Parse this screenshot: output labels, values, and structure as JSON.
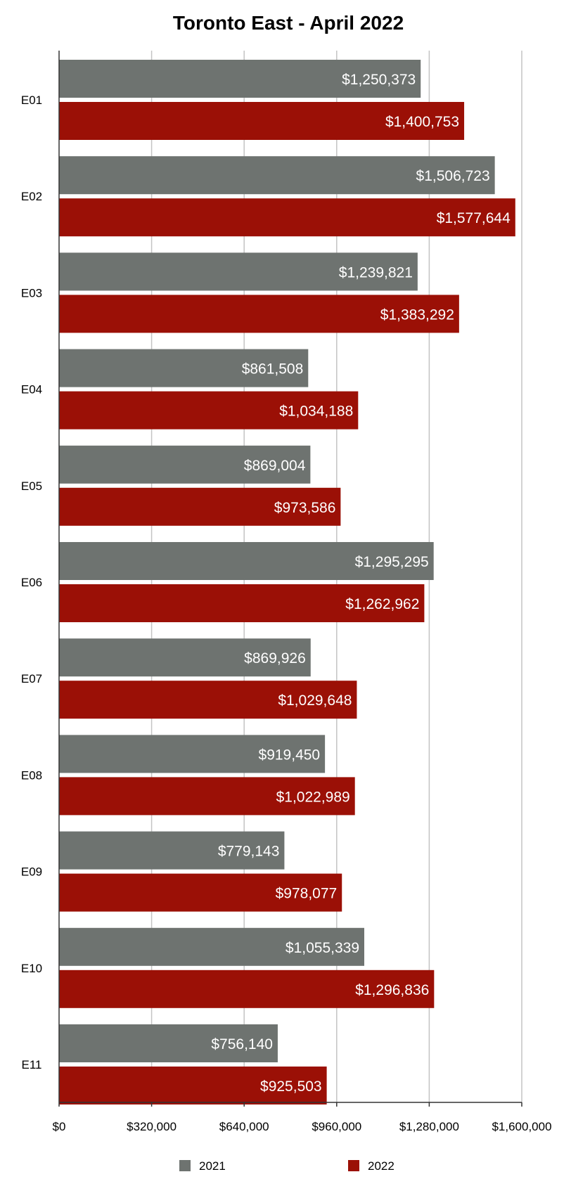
{
  "chart_data": {
    "type": "bar",
    "orientation": "horizontal",
    "title": "Toronto East - April 2022",
    "xlabel": "",
    "ylabel": "",
    "categories": [
      "E01",
      "E02",
      "E03",
      "E04",
      "E05",
      "E06",
      "E07",
      "E08",
      "E09",
      "E10",
      "E11"
    ],
    "series": [
      {
        "name": "2021",
        "color": "#6e7370",
        "values": [
          1250373,
          1506723,
          1239821,
          861508,
          869004,
          1295295,
          869926,
          919450,
          779143,
          1055339,
          756140
        ],
        "labels": [
          "$1,250,373",
          "$1,506,723",
          "$1,239,821",
          "$861,508",
          "$869,004",
          "$1,295,295",
          "$869,926",
          "$919,450",
          "$779,143",
          "$1,055,339",
          "$756,140"
        ]
      },
      {
        "name": "2022",
        "color": "#9b1006",
        "values": [
          1400753,
          1577644,
          1383292,
          1034188,
          973586,
          1262962,
          1029648,
          1022989,
          978077,
          1296836,
          925503
        ],
        "labels": [
          "$1,400,753",
          "$1,577,644",
          "$1,383,292",
          "$1,034,188",
          "$973,586",
          "$1,262,962",
          "$1,029,648",
          "$1,022,989",
          "$978,077",
          "$1,296,836",
          "$925,503"
        ]
      }
    ],
    "xlim": [
      0,
      1600000
    ],
    "xticks": [
      0,
      320000,
      640000,
      960000,
      1280000,
      1600000
    ],
    "xtick_labels": [
      "$0",
      "$320,000",
      "$640,000",
      "$960,000",
      "$1,280,000",
      "$1,600,000"
    ],
    "grid": true,
    "legend_position": "bottom"
  }
}
